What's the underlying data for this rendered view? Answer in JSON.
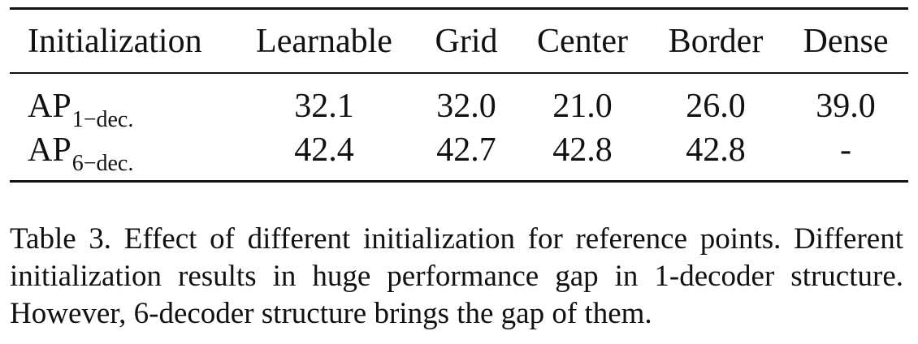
{
  "table": {
    "columns": [
      "Initialization",
      "Learnable",
      "Grid",
      "Center",
      "Border",
      "Dense"
    ],
    "rows": [
      {
        "metric": "AP",
        "subscript": "1−dec.",
        "values": [
          "32.1",
          "32.0",
          "21.0",
          "26.0",
          "39.0"
        ]
      },
      {
        "metric": "AP",
        "subscript": "6−dec.",
        "values": [
          "42.4",
          "42.7",
          "42.8",
          "42.8",
          "-"
        ]
      }
    ]
  },
  "caption": "Table 3. Effect of different initialization for reference points. Different initialization results in huge performance gap in 1-decoder structure. However, 6-decoder structure brings the gap of them."
}
